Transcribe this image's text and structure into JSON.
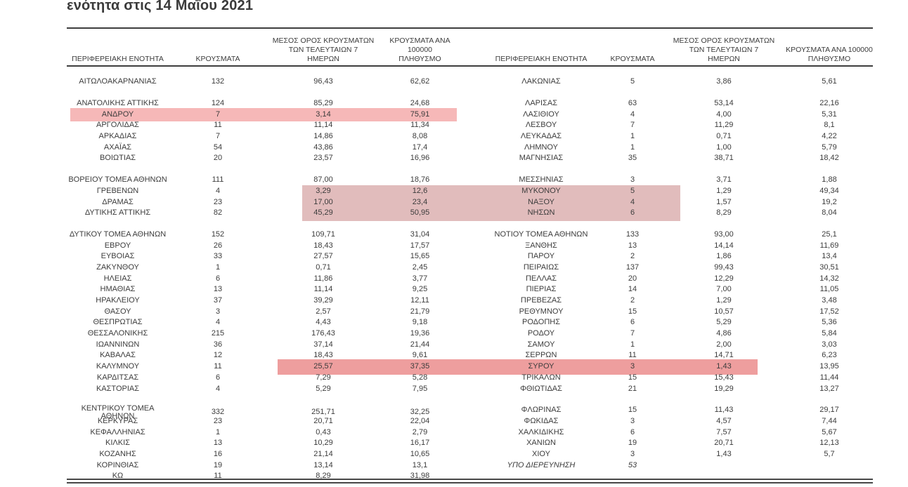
{
  "page": {
    "title": "ενότητα στις 14 Μαΐου 2021"
  },
  "table": {
    "headers": {
      "region": "ΠΕΡΙΦΕΡΕΙΑΚΗ ΕΝΟΤΗΤΑ",
      "cases": "ΚΡΟΥΣΜΑΤΑ",
      "avg7_line1": "ΜΕΣΟΣ ΟΡΟΣ ΚΡΟΥΣΜΑΤΩΝ",
      "avg7_line2": "ΤΩΝ ΤΕΛΕΥΤΑΙΩΝ 7",
      "avg7_line3": "ΗΜΕΡΩΝ",
      "per100k_line1": "ΚΡΟΥΣΜΑΤΑ ΑΝΑ 100000",
      "per100k_line2": "ΠΛΗΘΥΣΜΟ"
    },
    "left_groups": [
      [
        {
          "name": "ΑΙΤΩΛΟΑΚΑΡΝΑΝΙΑΣ",
          "cases": "132",
          "avg7": "96,43",
          "per100k": "62,62"
        }
      ],
      [
        {
          "name": "ΑΝΑΤΟΛΙΚΗΣ ΑΤΤΙΚΗΣ",
          "cases": "124",
          "avg7": "85,29",
          "per100k": "24,68"
        },
        {
          "name": "ΑΝΔΡΟΥ",
          "cases": "7",
          "avg7": "3,14",
          "per100k": "75,91"
        },
        {
          "name": "ΑΡΓΟΛΙΔΑΣ",
          "cases": "11",
          "avg7": "11,14",
          "per100k": "11,34"
        },
        {
          "name": "ΑΡΚΑΔΙΑΣ",
          "cases": "7",
          "avg7": "14,86",
          "per100k": "8,08"
        },
        {
          "name": "ΑΧΑΪΑΣ",
          "cases": "54",
          "avg7": "43,86",
          "per100k": "17,4"
        },
        {
          "name": "ΒΟΙΩΤΙΑΣ",
          "cases": "20",
          "avg7": "23,57",
          "per100k": "16,96"
        }
      ],
      [
        {
          "name": "ΒΟΡΕΙΟΥ ΤΟΜΕΑ ΑΘΗΝΩΝ",
          "cases": "111",
          "avg7": "87,00",
          "per100k": "18,76"
        },
        {
          "name": "ΓΡΕΒΕΝΩΝ",
          "cases": "4",
          "avg7": "3,29",
          "per100k": "12,6"
        },
        {
          "name": "ΔΡΑΜΑΣ",
          "cases": "23",
          "avg7": "17,00",
          "per100k": "23,4"
        },
        {
          "name": "ΔΥΤΙΚΗΣ ΑΤΤΙΚΗΣ",
          "cases": "82",
          "avg7": "45,29",
          "per100k": "50,95"
        }
      ],
      [
        {
          "name": "ΔΥΤΙΚΟΥ ΤΟΜΕΑ ΑΘΗΝΩΝ",
          "cases": "152",
          "avg7": "109,71",
          "per100k": "31,04"
        },
        {
          "name": "ΕΒΡΟΥ",
          "cases": "26",
          "avg7": "18,43",
          "per100k": "17,57"
        },
        {
          "name": "ΕΥΒΟΙΑΣ",
          "cases": "33",
          "avg7": "27,57",
          "per100k": "15,65"
        },
        {
          "name": "ΖΑΚΥΝΘΟΥ",
          "cases": "1",
          "avg7": "0,71",
          "per100k": "2,45"
        },
        {
          "name": "ΗΛΕΙΑΣ",
          "cases": "6",
          "avg7": "11,86",
          "per100k": "3,77"
        },
        {
          "name": "ΗΜΑΘΙΑΣ",
          "cases": "13",
          "avg7": "11,14",
          "per100k": "9,25"
        },
        {
          "name": "ΗΡΑΚΛΕΙΟΥ",
          "cases": "37",
          "avg7": "39,29",
          "per100k": "12,11"
        },
        {
          "name": "ΘΑΣΟΥ",
          "cases": "3",
          "avg7": "2,57",
          "per100k": "21,79"
        },
        {
          "name": "ΘΕΣΠΡΩΤΙΑΣ",
          "cases": "4",
          "avg7": "4,43",
          "per100k": "9,18"
        },
        {
          "name": "ΘΕΣΣΑΛΟΝΙΚΗΣ",
          "cases": "215",
          "avg7": "176,43",
          "per100k": "19,36"
        },
        {
          "name": "ΙΩΑΝΝΙΝΩΝ",
          "cases": "36",
          "avg7": "37,14",
          "per100k": "21,44"
        },
        {
          "name": "ΚΑΒΑΛΑΣ",
          "cases": "12",
          "avg7": "18,43",
          "per100k": "9,61"
        },
        {
          "name": "ΚΑΛΥΜΝΟΥ",
          "cases": "11",
          "avg7": "25,57",
          "per100k": "37,35"
        },
        {
          "name": "ΚΑΡΔΙΤΣΑΣ",
          "cases": "6",
          "avg7": "7,29",
          "per100k": "5,28"
        },
        {
          "name": "ΚΑΣΤΟΡΙΑΣ",
          "cases": "4",
          "avg7": "5,29",
          "per100k": "7,95"
        }
      ],
      [
        {
          "name": "ΚΕΝΤΡΙΚΟΥ ΤΟΜΕΑ ΑΘΗΝΩΝ",
          "cases": "332",
          "avg7": "251,71",
          "per100k": "32,25"
        },
        {
          "name": "ΚΕΡΚΥΡΑΣ",
          "cases": "23",
          "avg7": "20,71",
          "per100k": "22,04"
        },
        {
          "name": "ΚΕΦΑΛΛΗΝΙΑΣ",
          "cases": "1",
          "avg7": "0,43",
          "per100k": "2,79"
        },
        {
          "name": "ΚΙΛΚΙΣ",
          "cases": "13",
          "avg7": "10,29",
          "per100k": "16,17"
        },
        {
          "name": "ΚΟΖΑΝΗΣ",
          "cases": "16",
          "avg7": "21,14",
          "per100k": "10,65"
        },
        {
          "name": "ΚΟΡΙΝΘΙΑΣ",
          "cases": "19",
          "avg7": "13,14",
          "per100k": "13,1"
        },
        {
          "name": "ΚΩ",
          "cases": "11",
          "avg7": "8,29",
          "per100k": "31,98"
        }
      ]
    ],
    "right_groups": [
      [
        {
          "name": "ΛΑΚΩΝΙΑΣ",
          "cases": "5",
          "avg7": "3,86",
          "per100k": "5,61"
        }
      ],
      [
        {
          "name": "ΛΑΡΙΣΑΣ",
          "cases": "63",
          "avg7": "53,14",
          "per100k": "22,16"
        },
        {
          "name": "ΛΑΣΙΘΙΟΥ",
          "cases": "4",
          "avg7": "4,00",
          "per100k": "5,31"
        },
        {
          "name": "ΛΕΣΒΟΥ",
          "cases": "7",
          "avg7": "11,29",
          "per100k": "8,1"
        },
        {
          "name": "ΛΕΥΚΑΔΑΣ",
          "cases": "1",
          "avg7": "0,71",
          "per100k": "4,22"
        },
        {
          "name": "ΛΗΜΝΟΥ",
          "cases": "1",
          "avg7": "1,00",
          "per100k": "5,79"
        },
        {
          "name": "ΜΑΓΝΗΣΙΑΣ",
          "cases": "35",
          "avg7": "38,71",
          "per100k": "18,42"
        }
      ],
      [
        {
          "name": "ΜΕΣΣΗΝΙΑΣ",
          "cases": "3",
          "avg7": "3,71",
          "per100k": "1,88"
        },
        {
          "name": "ΜΥΚΟΝΟΥ",
          "cases": "5",
          "avg7": "1,29",
          "per100k": "49,34"
        },
        {
          "name": "ΝΑΞΟΥ",
          "cases": "4",
          "avg7": "1,57",
          "per100k": "19,2"
        },
        {
          "name": "ΝΗΣΩΝ",
          "cases": "6",
          "avg7": "8,29",
          "per100k": "8,04"
        }
      ],
      [
        {
          "name": "ΝΟΤΙΟΥ ΤΟΜΕΑ ΑΘΗΝΩΝ",
          "cases": "133",
          "avg7": "93,00",
          "per100k": "25,1"
        },
        {
          "name": "ΞΑΝΘΗΣ",
          "cases": "13",
          "avg7": "14,14",
          "per100k": "11,69"
        },
        {
          "name": "ΠΑΡΟΥ",
          "cases": "2",
          "avg7": "1,86",
          "per100k": "13,4"
        },
        {
          "name": "ΠΕΙΡΑΙΩΣ",
          "cases": "137",
          "avg7": "99,43",
          "per100k": "30,51"
        },
        {
          "name": "ΠΕΛΛΑΣ",
          "cases": "20",
          "avg7": "12,29",
          "per100k": "14,32"
        },
        {
          "name": "ΠΙΕΡΙΑΣ",
          "cases": "14",
          "avg7": "7,00",
          "per100k": "11,05"
        },
        {
          "name": "ΠΡΕΒΕΖΑΣ",
          "cases": "2",
          "avg7": "1,29",
          "per100k": "3,48"
        },
        {
          "name": "ΡΕΘΥΜΝΟΥ",
          "cases": "15",
          "avg7": "10,57",
          "per100k": "17,52"
        },
        {
          "name": "ΡΟΔΟΠΗΣ",
          "cases": "6",
          "avg7": "5,29",
          "per100k": "5,36"
        },
        {
          "name": "ΡΟΔΟΥ",
          "cases": "7",
          "avg7": "4,86",
          "per100k": "5,84"
        },
        {
          "name": "ΣΑΜΟΥ",
          "cases": "1",
          "avg7": "2,00",
          "per100k": "3,03"
        },
        {
          "name": "ΣΕΡΡΩΝ",
          "cases": "11",
          "avg7": "14,71",
          "per100k": "6,23"
        },
        {
          "name": "ΣΥΡΟΥ",
          "cases": "3",
          "avg7": "1,43",
          "per100k": "13,95"
        },
        {
          "name": "ΤΡΙΚΑΛΩΝ",
          "cases": "15",
          "avg7": "15,43",
          "per100k": "11,44"
        },
        {
          "name": "ΦΘΙΩΤΙΔΑΣ",
          "cases": "21",
          "avg7": "19,29",
          "per100k": "13,27"
        }
      ],
      [
        {
          "name": "ΦΛΩΡΙΝΑΣ",
          "cases": "15",
          "avg7": "11,43",
          "per100k": "29,17"
        },
        {
          "name": "ΦΩΚΙΔΑΣ",
          "cases": "3",
          "avg7": "4,57",
          "per100k": "7,44"
        },
        {
          "name": "ΧΑΛΚΙΔΙΚΗΣ",
          "cases": "6",
          "avg7": "7,57",
          "per100k": "5,67"
        },
        {
          "name": "ΧΑΝΙΩΝ",
          "cases": "19",
          "avg7": "20,71",
          "per100k": "12,13"
        },
        {
          "name": "ΧΙΟΥ",
          "cases": "3",
          "avg7": "1,43",
          "per100k": "5,7"
        },
        {
          "name": "ΥΠΟ ΔΙΕΡΕΥΝΗΣΗ",
          "cases": "53",
          "avg7": "",
          "per100k": "",
          "italic": true
        }
      ]
    ]
  },
  "highlights": [
    {
      "id": "androu-row",
      "color": "#f6b8b8"
    },
    {
      "id": "mykonou-naxou-nison-block",
      "color": "#e1bcbc"
    },
    {
      "id": "kalymnou-syrou-row",
      "color": "#ee9e9e"
    }
  ]
}
